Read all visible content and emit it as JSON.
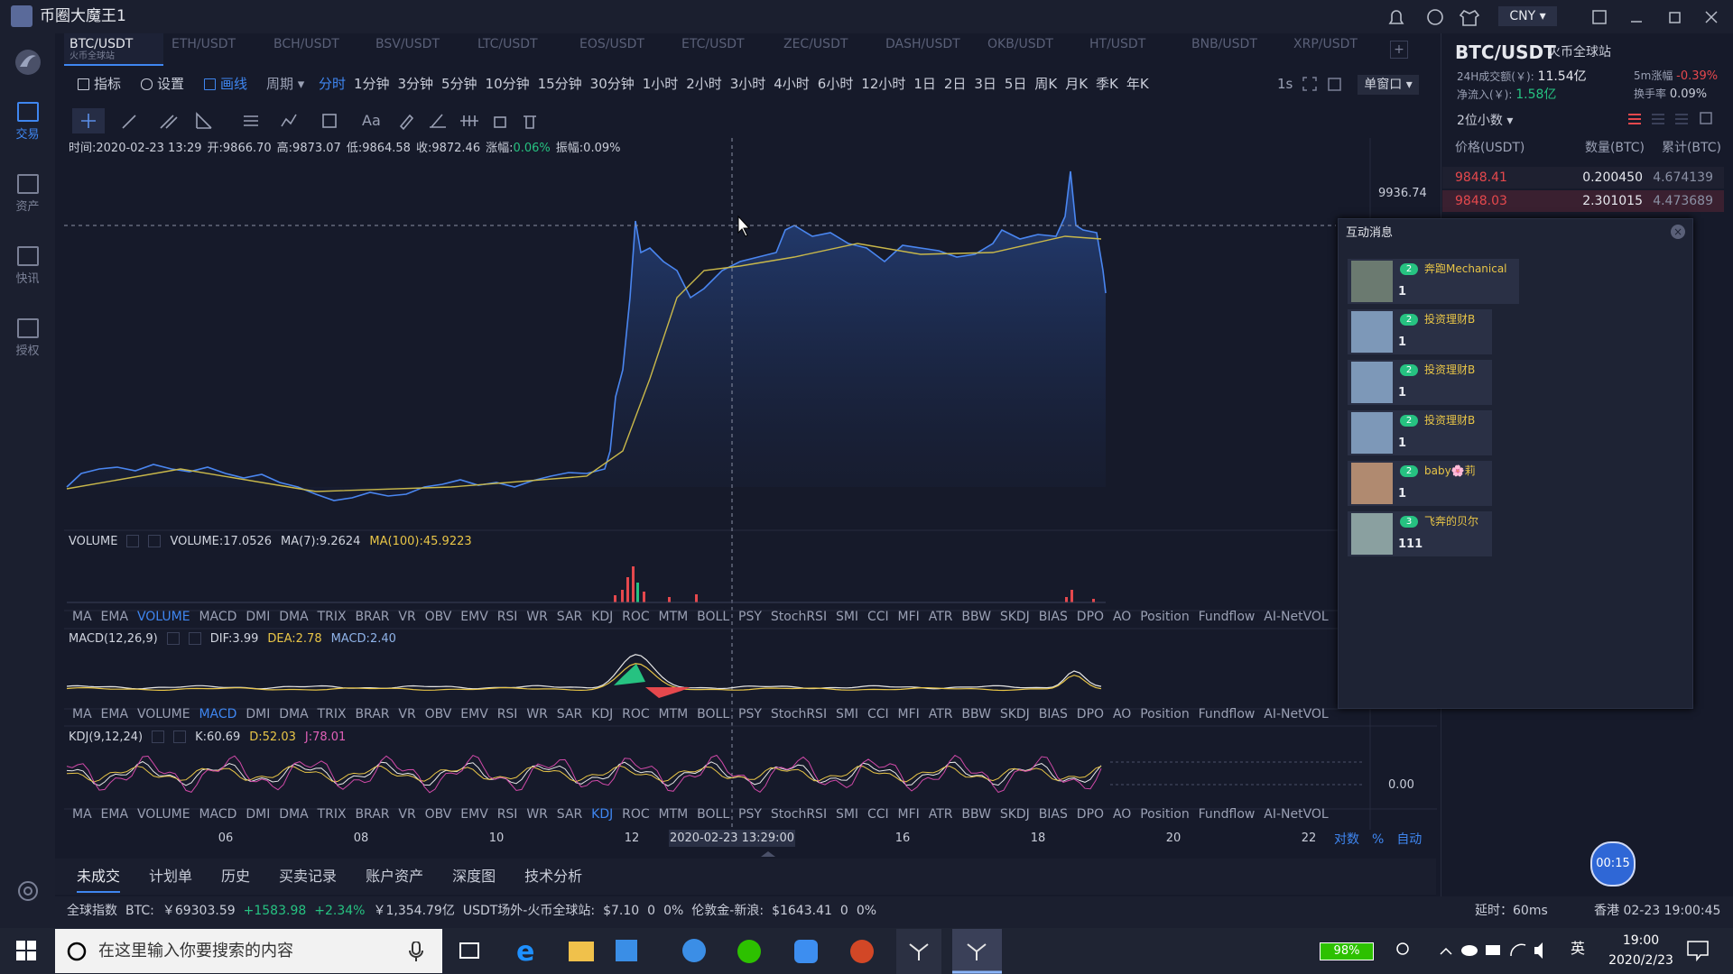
{
  "title_bar": {
    "app_title": "币圈大魔王1",
    "currency": "CNY"
  },
  "sidebar": {
    "items": [
      "交易",
      "资产",
      "快讯",
      "授权"
    ],
    "active_index": 0
  },
  "pairs": {
    "items": [
      {
        "name": "BTC/USDT",
        "sub": "火币全球站"
      },
      {
        "name": "ETH/USDT"
      },
      {
        "name": "BCH/USDT"
      },
      {
        "name": "BSV/USDT"
      },
      {
        "name": "LTC/USDT"
      },
      {
        "name": "EOS/USDT"
      },
      {
        "name": "ETC/USDT"
      },
      {
        "name": "ZEC/USDT"
      },
      {
        "name": "DASH/USDT"
      },
      {
        "name": "OKB/USDT"
      },
      {
        "name": "HT/USDT"
      },
      {
        "name": "BNB/USDT"
      },
      {
        "name": "XRP/USDT"
      }
    ],
    "active_index": 0
  },
  "toolbar": {
    "tools": [
      "指标",
      "设置",
      "画线"
    ],
    "active_tool_index": 2,
    "period_label": "周期",
    "periods": [
      "分时",
      "1分钟",
      "3分钟",
      "5分钟",
      "10分钟",
      "15分钟",
      "30分钟",
      "1小时",
      "2小时",
      "3小时",
      "4小时",
      "6小时",
      "12小时",
      "1日",
      "2日",
      "3日",
      "5日",
      "周K",
      "月K",
      "季K",
      "年K"
    ],
    "active_period_index": 0,
    "speed": "1s",
    "window_mode": "单窗口",
    "font_tool": "Aa"
  },
  "chart": {
    "info": {
      "time": "时间:2020-02-23 13:29",
      "open": "开:9866.70",
      "high": "高:9873.07",
      "low": "低:9864.58",
      "close": "收:9872.46",
      "change_label": "涨幅:",
      "change": "0.06%",
      "amplitude": "振幅:0.09%"
    },
    "price_label": "9936.74",
    "kdj_axis_label": "0.00",
    "panels": [
      {
        "label": "VOLUME",
        "values": [
          "VOLUME:17.0526",
          "MA(7):9.2624",
          "MA(100):45.9223"
        ],
        "value_colors": [
          "#d0d4de",
          "#d0d4de",
          "#e8c547"
        ],
        "active_index": 2
      },
      {
        "label": "MACD(12,26,9)",
        "values": [
          "DIF:3.99",
          "DEA:2.78",
          "MACD:2.40"
        ],
        "value_colors": [
          "#d0d4de",
          "#e8c547",
          "#8fb3e8"
        ],
        "active_index": 3
      },
      {
        "label": "KDJ(9,12,24)",
        "values": [
          "K:60.69",
          "D:52.03",
          "J:78.01"
        ],
        "value_colors": [
          "#d0d4de",
          "#e8c547",
          "#e060b8"
        ],
        "active_index": 14
      }
    ],
    "indicators": [
      "MA",
      "EMA",
      "VOLUME",
      "MACD",
      "DMI",
      "DMA",
      "TRIX",
      "BRAR",
      "VR",
      "OBV",
      "EMV",
      "RSI",
      "WR",
      "SAR",
      "KDJ",
      "ROC",
      "MTM",
      "BOLL",
      "PSY",
      "StochRSI",
      "SMI",
      "CCI",
      "MFI",
      "ATR",
      "BBW",
      "SKDJ",
      "BIAS",
      "DPO",
      "AO",
      "Position",
      "Fundflow",
      "AI-NetVOL"
    ],
    "date_ticks": [
      "06",
      "08",
      "10",
      "12",
      "16",
      "18",
      "20",
      "22"
    ],
    "crosshair_time": "2020-02-23 13:29:00",
    "axis_options": [
      "对数",
      "%",
      "自动"
    ]
  },
  "bottom_tabs": {
    "items": [
      "未成交",
      "计划单",
      "历史",
      "买卖记录",
      "账户资产",
      "深度图",
      "技术分析"
    ],
    "active_index": 0
  },
  "status_bar": {
    "segments": [
      {
        "text": "全球指数"
      },
      {
        "text": "BTC:"
      },
      {
        "text": "￥69303.59"
      },
      {
        "text": "+1583.98",
        "tone": "up"
      },
      {
        "text": "+2.34%",
        "tone": "up"
      },
      {
        "text": "￥1,354.79亿"
      },
      {
        "text": "USDT场外-火币全球站:"
      },
      {
        "text": "$7.10"
      },
      {
        "text": "0"
      },
      {
        "text": "0%"
      },
      {
        "text": "伦敦金-新浪:"
      },
      {
        "text": "$1643.41"
      },
      {
        "text": "0"
      },
      {
        "text": "0%"
      }
    ],
    "latency": "延时：60ms",
    "clock": "香港 02-23 19:00:45"
  },
  "right_panel": {
    "pair": "BTC/USDT",
    "exchange": "火币全球站",
    "turnover_label": "24H成交额(￥):",
    "turnover": "11.54亿",
    "change_label": "5m涨幅",
    "change": "-0.39%",
    "inflow_label": "净流入(￥):",
    "inflow": "1.58亿",
    "rate_label": "换手率",
    "rate": "0.09%",
    "decimals": "2位小数",
    "headers": [
      "价格(USDT)",
      "数量(BTC)",
      "累计(BTC)"
    ],
    "rows": [
      [
        "9848.41",
        "0.200450",
        "4.674139"
      ],
      [
        "9848.03",
        "2.301015",
        "4.473689"
      ]
    ]
  },
  "messages": {
    "title": "互动消息",
    "items": [
      {
        "name": "奔跑Mechanical",
        "level": "2",
        "text": "1"
      },
      {
        "name": "投资理财B",
        "level": "2",
        "text": "1"
      },
      {
        "name": "投资理财B",
        "level": "2",
        "text": "1"
      },
      {
        "name": "投资理财B",
        "level": "2",
        "text": "1"
      },
      {
        "name": "baby🌸莉",
        "level": "2",
        "text": "1"
      },
      {
        "name": "飞奔的贝尔",
        "level": "3",
        "text": "111"
      }
    ]
  },
  "timer": "00:15",
  "taskbar": {
    "search": "在这里输入你要搜索的内容",
    "battery": "98%",
    "ime": "英",
    "time": "19:00",
    "date": "2020/2/23"
  }
}
